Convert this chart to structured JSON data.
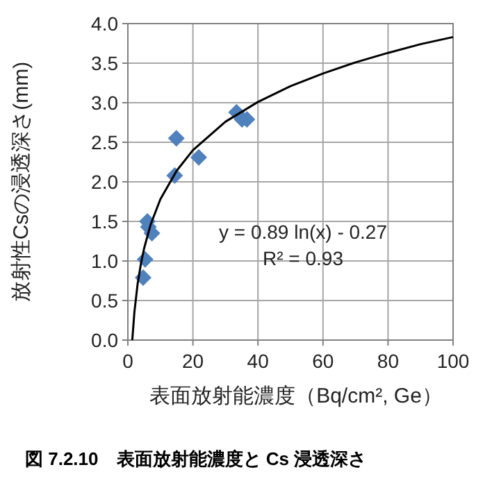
{
  "chart_data": {
    "type": "scatter",
    "title": "図 7.2.10　表面放射能濃度と Cs 浸透深さ",
    "xlabel": "表面放射能濃度（Bq/cm², Ge）",
    "ylabel": "放射性Csの浸透深さ(mm)",
    "annotations": [
      "y = 0.89 ln(x) - 0.27",
      "R² = 0.93"
    ],
    "xlim": [
      0,
      100
    ],
    "xticks": [
      0,
      20,
      40,
      60,
      80,
      100
    ],
    "ylim": [
      0,
      4
    ],
    "yticks": [
      {
        "value": 0,
        "label": "0.0"
      },
      {
        "value": 0.5,
        "label": "0.5"
      },
      {
        "value": 1,
        "label": "1.0"
      },
      {
        "value": 1.5,
        "label": "1.5"
      },
      {
        "value": 2,
        "label": "2.0"
      },
      {
        "value": 2.5,
        "label": "2.5"
      },
      {
        "value": 3,
        "label": "3.0"
      },
      {
        "value": 3.5,
        "label": "3.5"
      },
      {
        "value": 4,
        "label": "4.0"
      }
    ],
    "grid": true,
    "marker": "diamond",
    "series": [
      {
        "type": "scatter",
        "color": "#4f81bd",
        "x": [
          4.7,
          5.3,
          6.0,
          6.3,
          7.4,
          14.4,
          14.9,
          21.8,
          33.4,
          35.1,
          36.6
        ],
        "values": [
          0.79,
          1.02,
          1.5,
          1.43,
          1.35,
          2.08,
          2.55,
          2.31,
          2.88,
          2.79,
          2.79
        ]
      },
      {
        "type": "line",
        "color": "#000000",
        "marker": "none",
        "x": [
          1.36,
          2,
          3,
          4,
          5,
          7,
          10,
          15,
          20,
          30,
          40,
          50,
          60,
          70,
          80,
          90,
          100
        ],
        "values": [
          0.0,
          0.35,
          0.71,
          0.96,
          1.16,
          1.46,
          1.78,
          2.14,
          2.4,
          2.76,
          3.01,
          3.21,
          3.37,
          3.51,
          3.63,
          3.74,
          3.83
        ]
      }
    ]
  }
}
